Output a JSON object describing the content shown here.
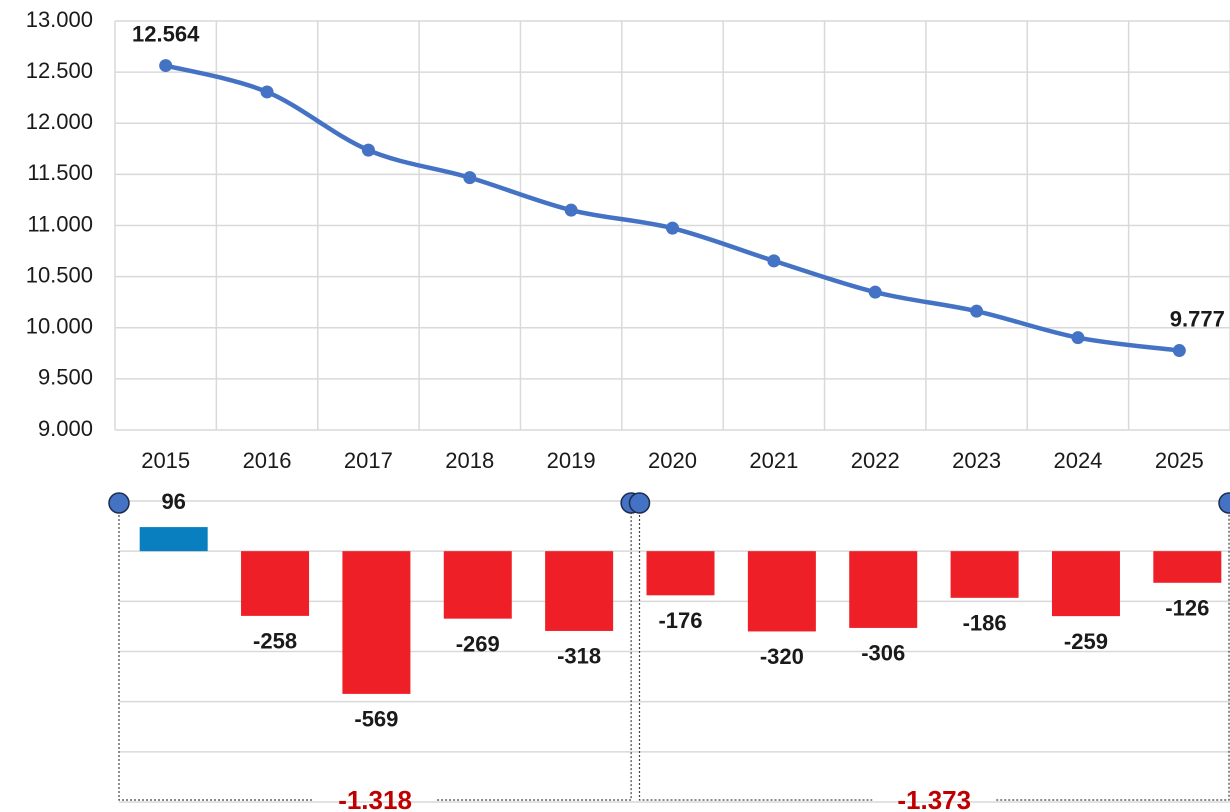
{
  "chart_data": [
    {
      "type": "line",
      "categories": [
        "2015",
        "2016",
        "2017",
        "2018",
        "2019",
        "2020",
        "2021",
        "2022",
        "2023",
        "2024",
        "2025"
      ],
      "series": [
        {
          "color": "#4472c4",
          "values": [
            12564,
            12306,
            11737,
            11468,
            11150,
            10974,
            10654,
            10348,
            10162,
            9903,
            9777
          ],
          "value_labels": [
            "12.564",
            null,
            null,
            null,
            null,
            null,
            null,
            null,
            null,
            null,
            "9.777"
          ]
        }
      ],
      "ylim": [
        9000,
        13000
      ],
      "yticks": [
        {
          "value": 9000,
          "label": "9.000"
        },
        {
          "value": 9500,
          "label": "9.500"
        },
        {
          "value": 10000,
          "label": "10.000"
        },
        {
          "value": 10500,
          "label": "10.500"
        },
        {
          "value": 11000,
          "label": "11.000"
        },
        {
          "value": 11500,
          "label": "11.500"
        },
        {
          "value": 12000,
          "label": "12.000"
        },
        {
          "value": 12500,
          "label": "12.500"
        },
        {
          "value": 13000,
          "label": "13.000"
        }
      ],
      "grid": true
    },
    {
      "type": "bar",
      "categories": [
        "2015",
        "2016",
        "2017",
        "2018",
        "2019",
        "2020",
        "2021",
        "2022",
        "2023",
        "2024",
        "2025"
      ],
      "values": [
        96,
        -258,
        -569,
        -269,
        -318,
        -176,
        -320,
        -306,
        -186,
        -259,
        -126
      ],
      "positive_color": "#0a7fc0",
      "negative_color": "#ee1f26",
      "ylim": [
        -1000,
        200
      ],
      "yticks": [
        -1000,
        -800,
        -600,
        -400,
        -200,
        0,
        200
      ],
      "grid": true,
      "groups": [
        {
          "start": "2015",
          "end": "2019",
          "total": -1318,
          "total_label": "-1.318",
          "color": "#c00000"
        },
        {
          "start": "2020",
          "end": "2025",
          "total": -1373,
          "total_label": "-1.373",
          "color": "#c00000"
        }
      ]
    }
  ]
}
